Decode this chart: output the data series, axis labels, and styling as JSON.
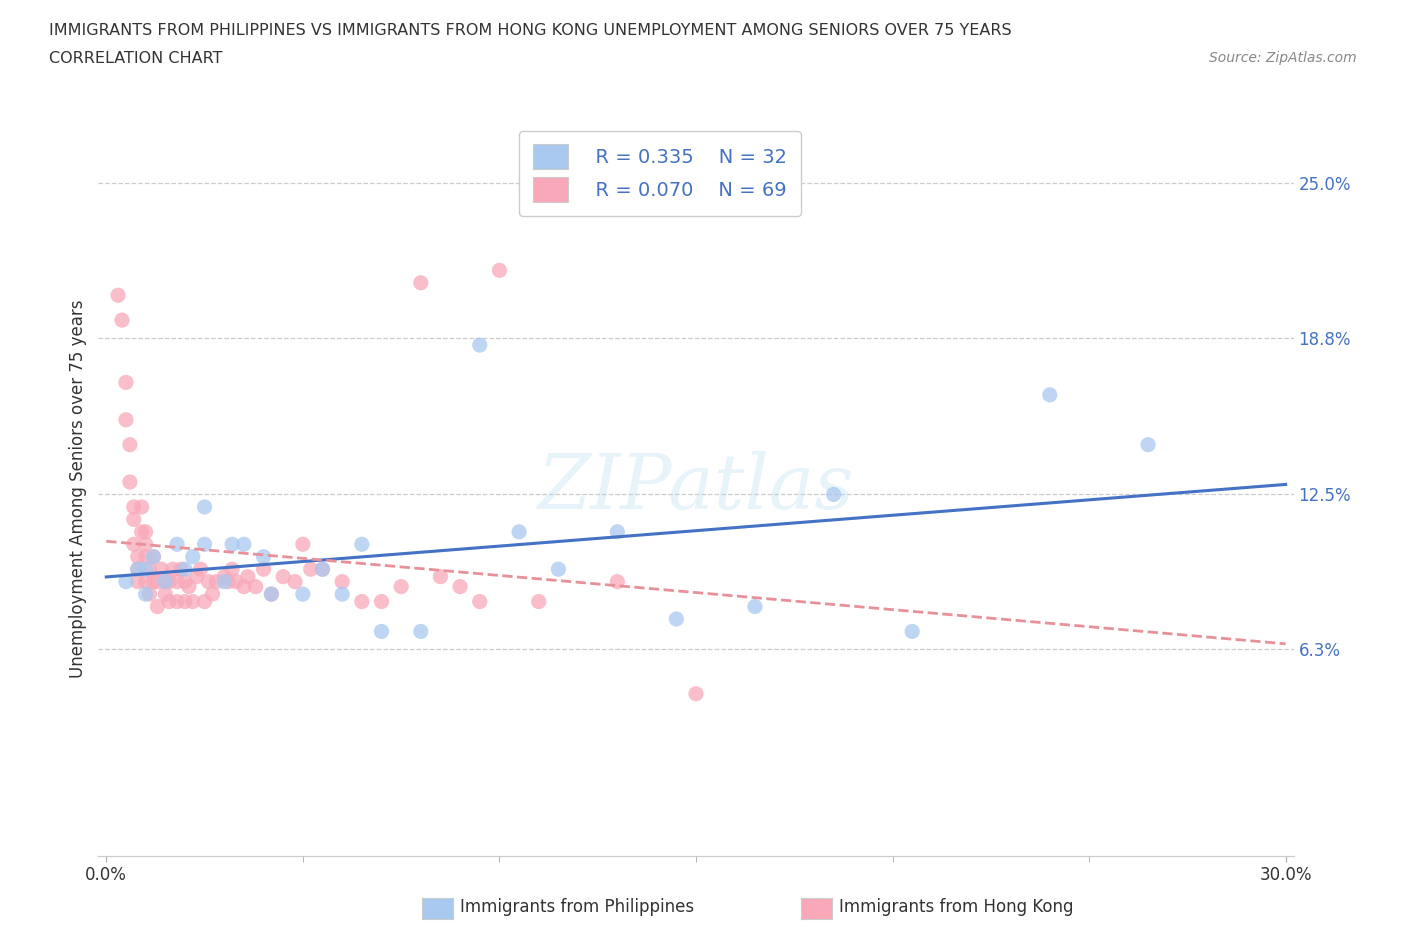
{
  "title_line1": "IMMIGRANTS FROM PHILIPPINES VS IMMIGRANTS FROM HONG KONG UNEMPLOYMENT AMONG SENIORS OVER 75 YEARS",
  "title_line2": "CORRELATION CHART",
  "source_text": "Source: ZipAtlas.com",
  "watermark": "ZIPatlas",
  "ylabel": "Unemployment Among Seniors over 75 years",
  "xlim": [
    -0.002,
    0.302
  ],
  "ylim": [
    -0.02,
    0.275
  ],
  "ytick_right_labels": [
    "6.3%",
    "12.5%",
    "18.8%",
    "25.0%"
  ],
  "ytick_right_values": [
    0.063,
    0.125,
    0.188,
    0.25
  ],
  "legend_r1": "R = 0.335",
  "legend_n1": "N = 32",
  "legend_r2": "R = 0.070",
  "legend_n2": "N = 69",
  "color_philippines": "#a8c8f0",
  "color_hongkong": "#f8a8b8",
  "trend_color_philippines": "#4472c4",
  "trend_color_hongkong": "#e8909a",
  "label_philippines": "Immigrants from Philippines",
  "label_hongkong": "Immigrants from Hong Kong",
  "philippines_x": [
    0.005,
    0.008,
    0.01,
    0.01,
    0.012,
    0.015,
    0.018,
    0.02,
    0.022,
    0.025,
    0.025,
    0.03,
    0.032,
    0.035,
    0.04,
    0.042,
    0.05,
    0.055,
    0.06,
    0.065,
    0.07,
    0.08,
    0.095,
    0.105,
    0.115,
    0.13,
    0.145,
    0.165,
    0.185,
    0.205,
    0.24,
    0.265
  ],
  "philippines_y": [
    0.09,
    0.095,
    0.085,
    0.095,
    0.1,
    0.09,
    0.105,
    0.095,
    0.1,
    0.105,
    0.12,
    0.09,
    0.105,
    0.105,
    0.1,
    0.085,
    0.085,
    0.095,
    0.085,
    0.105,
    0.07,
    0.07,
    0.185,
    0.11,
    0.095,
    0.11,
    0.075,
    0.08,
    0.125,
    0.07,
    0.165,
    0.145
  ],
  "hongkong_x": [
    0.003,
    0.004,
    0.005,
    0.005,
    0.006,
    0.006,
    0.007,
    0.007,
    0.007,
    0.008,
    0.008,
    0.008,
    0.009,
    0.009,
    0.01,
    0.01,
    0.01,
    0.01,
    0.011,
    0.011,
    0.012,
    0.012,
    0.013,
    0.013,
    0.014,
    0.015,
    0.015,
    0.016,
    0.016,
    0.017,
    0.018,
    0.018,
    0.019,
    0.02,
    0.02,
    0.021,
    0.022,
    0.023,
    0.024,
    0.025,
    0.026,
    0.027,
    0.028,
    0.03,
    0.031,
    0.032,
    0.033,
    0.035,
    0.036,
    0.038,
    0.04,
    0.042,
    0.045,
    0.048,
    0.05,
    0.052,
    0.055,
    0.06,
    0.065,
    0.07,
    0.075,
    0.08,
    0.085,
    0.09,
    0.095,
    0.1,
    0.11,
    0.13,
    0.15
  ],
  "hongkong_y": [
    0.205,
    0.195,
    0.17,
    0.155,
    0.145,
    0.13,
    0.12,
    0.115,
    0.105,
    0.1,
    0.095,
    0.09,
    0.12,
    0.11,
    0.11,
    0.105,
    0.1,
    0.09,
    0.095,
    0.085,
    0.1,
    0.09,
    0.09,
    0.08,
    0.095,
    0.09,
    0.085,
    0.09,
    0.082,
    0.095,
    0.09,
    0.082,
    0.095,
    0.09,
    0.082,
    0.088,
    0.082,
    0.092,
    0.095,
    0.082,
    0.09,
    0.085,
    0.09,
    0.092,
    0.09,
    0.095,
    0.09,
    0.088,
    0.092,
    0.088,
    0.095,
    0.085,
    0.092,
    0.09,
    0.105,
    0.095,
    0.095,
    0.09,
    0.082,
    0.082,
    0.088,
    0.21,
    0.092,
    0.088,
    0.082,
    0.215,
    0.082,
    0.09,
    0.045
  ]
}
